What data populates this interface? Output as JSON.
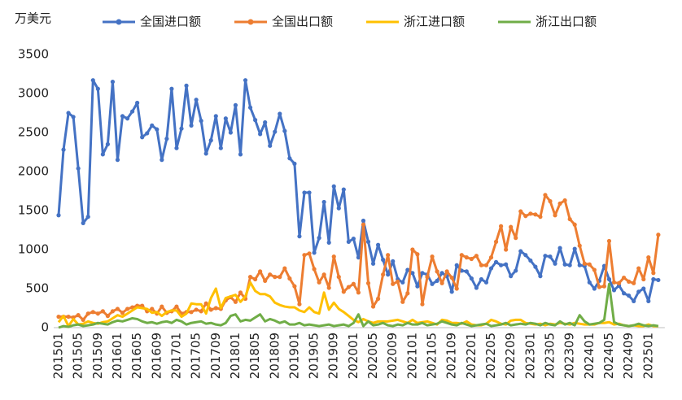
{
  "chart_data": {
    "type": "line",
    "y_label": "万美元",
    "categories": [
      "201501",
      null,
      null,
      null,
      "201505",
      null,
      null,
      null,
      "201509",
      null,
      null,
      null,
      "201601",
      null,
      null,
      null,
      "201605",
      null,
      null,
      null,
      "201609",
      null,
      null,
      null,
      "201701",
      null,
      null,
      null,
      "201705",
      null,
      null,
      null,
      "201709",
      null,
      null,
      null,
      "201801",
      null,
      null,
      null,
      "201805",
      null,
      null,
      null,
      "201809",
      null,
      null,
      null,
      "201901",
      null,
      null,
      null,
      "201905",
      null,
      null,
      null,
      "201909",
      null,
      null,
      null,
      "202001",
      null,
      null,
      null,
      "202005",
      null,
      null,
      null,
      "202009",
      null,
      null,
      null,
      "202101",
      null,
      null,
      null,
      "202105",
      null,
      null,
      null,
      "202109",
      null,
      null,
      null,
      "202201",
      null,
      null,
      null,
      "202205",
      null,
      null,
      null,
      "202209",
      null,
      null,
      null,
      "202301",
      null,
      null,
      null,
      "202305",
      null,
      null,
      null,
      "202309",
      null,
      null,
      null,
      "202401",
      null,
      null,
      null,
      "202405",
      null,
      null,
      null,
      "202409",
      null,
      null,
      null,
      "202501",
      null,
      null
    ],
    "series": [
      {
        "name": "全国进口额",
        "color": "#4472c4",
        "marker": true,
        "values": [
          1440,
          2280,
          2750,
          2700,
          2040,
          1340,
          1420,
          3170,
          3060,
          2220,
          2350,
          3150,
          2150,
          2710,
          2680,
          2770,
          2880,
          2440,
          2490,
          2590,
          2540,
          2150,
          2420,
          3060,
          2300,
          2550,
          3100,
          2590,
          2920,
          2650,
          2230,
          2400,
          2710,
          2300,
          2680,
          2500,
          2850,
          2220,
          3170,
          2820,
          2660,
          2480,
          2630,
          2330,
          2510,
          2740,
          2520,
          2170,
          2100,
          1170,
          1730,
          1730,
          960,
          1150,
          1610,
          1090,
          1810,
          1530,
          1770,
          1100,
          1140,
          900,
          1370,
          1100,
          820,
          1060,
          870,
          680,
          850,
          620,
          580,
          740,
          700,
          530,
          700,
          680,
          560,
          600,
          700,
          660,
          460,
          800,
          730,
          720,
          630,
          510,
          620,
          580,
          760,
          840,
          800,
          810,
          660,
          730,
          980,
          930,
          860,
          780,
          660,
          920,
          910,
          820,
          1020,
          810,
          800,
          1010,
          800,
          790,
          580,
          500,
          600,
          790,
          620,
          480,
          540,
          440,
          410,
          340,
          460,
          500,
          340,
          620,
          610
        ]
      },
      {
        "name": "全国出口额",
        "color": "#ed7d31",
        "marker": true,
        "values": [
          140,
          140,
          140,
          130,
          160,
          100,
          180,
          200,
          180,
          210,
          150,
          210,
          240,
          190,
          240,
          260,
          280,
          280,
          210,
          240,
          180,
          270,
          190,
          210,
          270,
          180,
          200,
          200,
          230,
          210,
          310,
          230,
          250,
          240,
          350,
          390,
          330,
          450,
          370,
          650,
          620,
          720,
          600,
          680,
          650,
          650,
          760,
          630,
          530,
          300,
          930,
          950,
          750,
          580,
          680,
          510,
          910,
          650,
          460,
          520,
          560,
          450,
          1320,
          570,
          270,
          370,
          680,
          930,
          560,
          590,
          330,
          440,
          1000,
          940,
          300,
          650,
          910,
          720,
          570,
          720,
          640,
          500,
          930,
          900,
          880,
          920,
          800,
          800,
          900,
          1100,
          1300,
          1000,
          1290,
          1150,
          1490,
          1430,
          1460,
          1450,
          1420,
          1700,
          1620,
          1440,
          1590,
          1630,
          1390,
          1320,
          1050,
          820,
          810,
          740,
          520,
          530,
          1110,
          580,
          570,
          640,
          590,
          570,
          760,
          620,
          900,
          700,
          1190
        ]
      },
      {
        "name": "浙江进口额",
        "color": "#ffc000",
        "marker": false,
        "values": [
          70,
          150,
          20,
          110,
          40,
          50,
          80,
          60,
          50,
          70,
          80,
          120,
          160,
          140,
          180,
          220,
          260,
          250,
          240,
          190,
          200,
          150,
          200,
          220,
          220,
          140,
          180,
          310,
          300,
          300,
          180,
          380,
          500,
          250,
          380,
          400,
          420,
          330,
          400,
          580,
          470,
          430,
          430,
          400,
          320,
          290,
          270,
          260,
          260,
          220,
          200,
          260,
          200,
          180,
          450,
          230,
          320,
          240,
          200,
          150,
          100,
          70,
          110,
          80,
          60,
          80,
          80,
          80,
          90,
          100,
          80,
          60,
          100,
          60,
          70,
          80,
          60,
          40,
          100,
          90,
          60,
          60,
          50,
          80,
          40,
          30,
          30,
          50,
          100,
          80,
          50,
          40,
          90,
          100,
          100,
          60,
          50,
          40,
          50,
          30,
          50,
          40,
          60,
          50,
          40,
          60,
          50,
          40,
          40,
          40,
          60,
          60,
          70,
          40,
          50,
          30,
          20,
          30,
          20,
          20,
          40,
          20,
          20
        ]
      },
      {
        "name": "浙江出口额",
        "color": "#70ad47",
        "marker": false,
        "values": [
          0,
          20,
          10,
          30,
          40,
          20,
          30,
          40,
          60,
          50,
          40,
          70,
          90,
          80,
          100,
          120,
          110,
          80,
          60,
          70,
          50,
          70,
          80,
          60,
          100,
          80,
          40,
          60,
          70,
          80,
          50,
          60,
          40,
          30,
          60,
          150,
          170,
          80,
          100,
          90,
          130,
          170,
          80,
          110,
          90,
          60,
          80,
          40,
          40,
          60,
          30,
          40,
          30,
          20,
          30,
          40,
          20,
          30,
          40,
          20,
          60,
          170,
          20,
          80,
          30,
          40,
          60,
          30,
          20,
          40,
          30,
          60,
          40,
          40,
          60,
          30,
          40,
          50,
          80,
          60,
          40,
          30,
          60,
          40,
          20,
          30,
          40,
          50,
          20,
          30,
          40,
          60,
          30,
          40,
          50,
          40,
          60,
          50,
          30,
          60,
          40,
          30,
          80,
          40,
          60,
          30,
          160,
          80,
          40,
          50,
          60,
          100,
          560,
          70,
          40,
          30,
          20,
          30,
          50,
          30,
          20,
          30,
          20
        ]
      }
    ],
    "ylim": [
      0,
      3500
    ],
    "yticks": [
      0,
      500,
      1000,
      1500,
      2000,
      2500,
      3000,
      3500
    ],
    "grid": false,
    "legend": "top"
  }
}
